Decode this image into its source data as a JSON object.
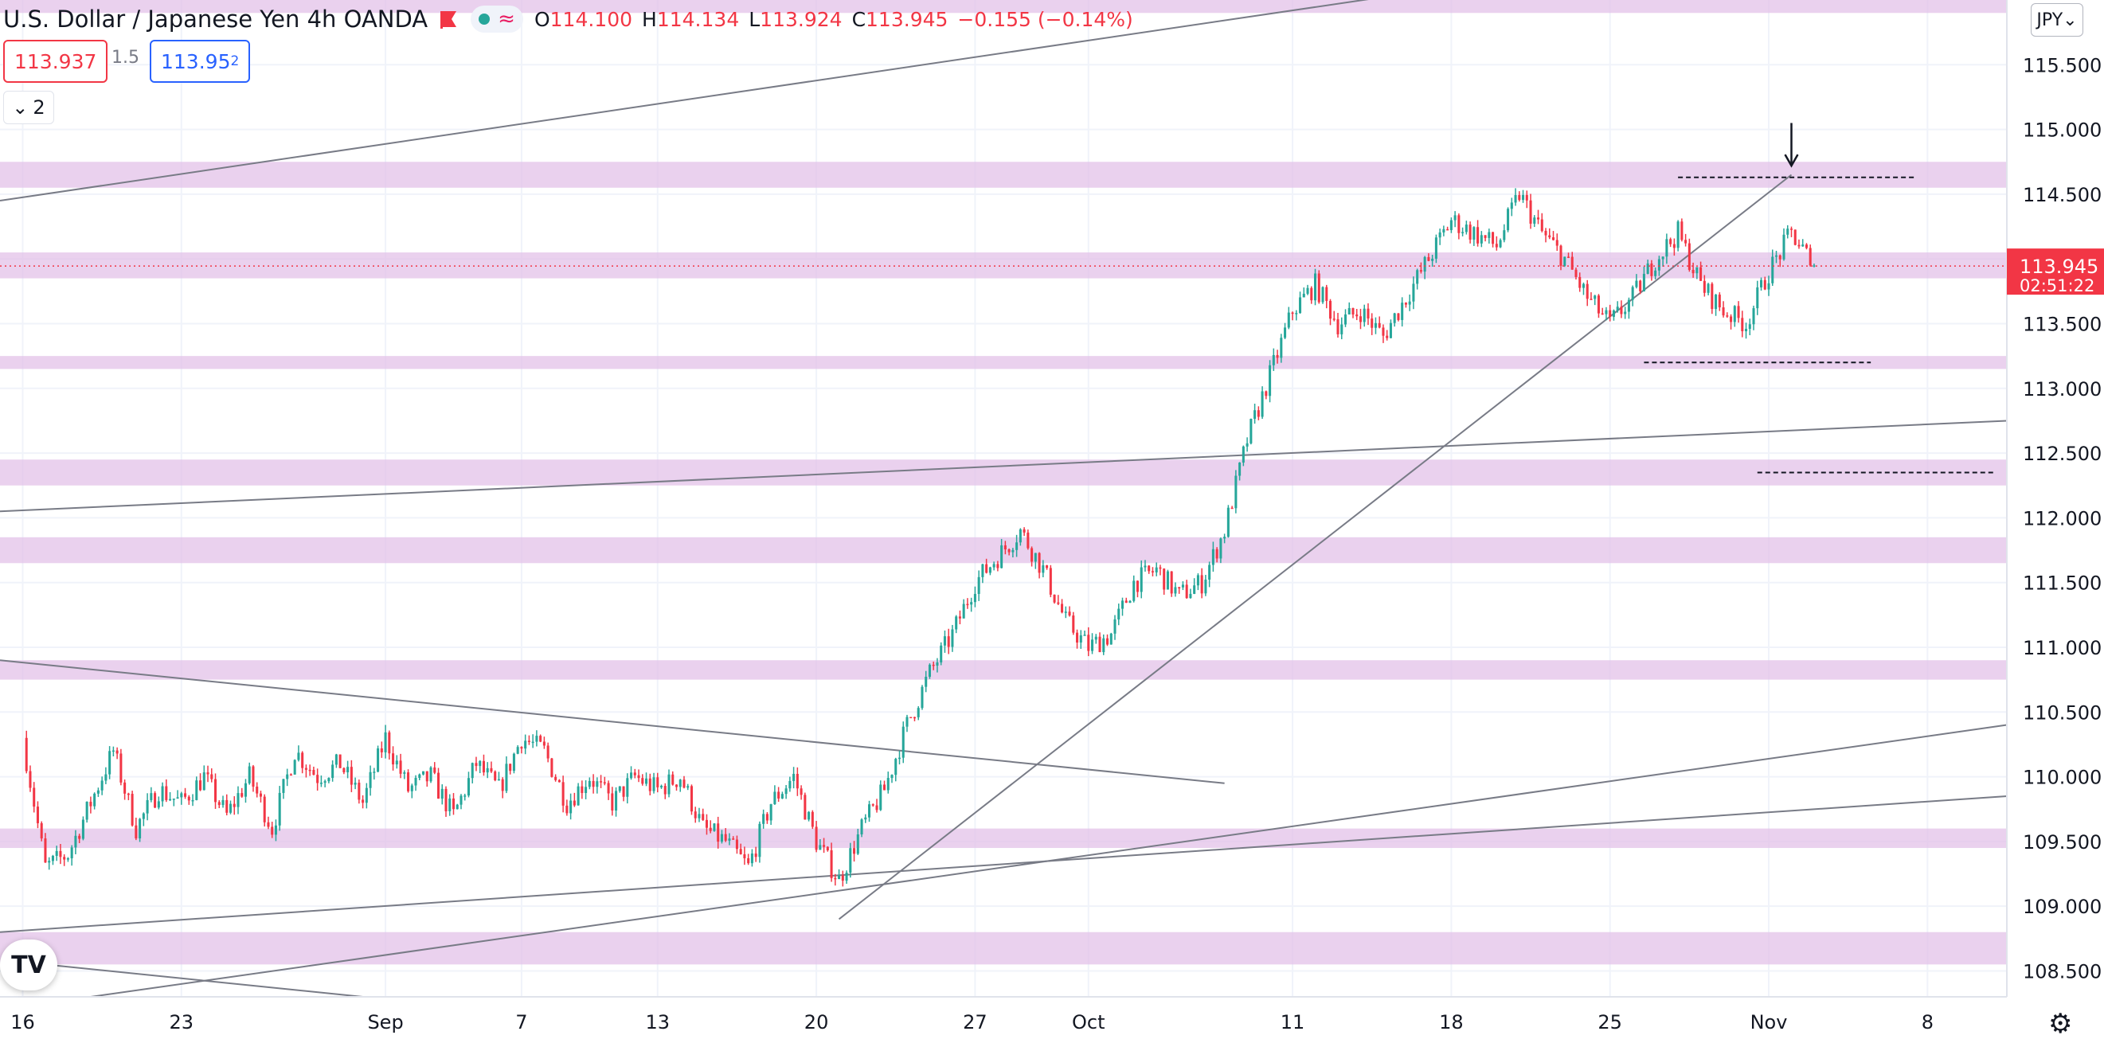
{
  "header": {
    "symbol_title": "U.S. Dollar / Japanese Yen",
    "interval": "4h",
    "broker": "OANDA",
    "approx_icon": "≈",
    "ohlc": {
      "o_label": "O",
      "o": "114.100",
      "h_label": "H",
      "h": "114.134",
      "l_label": "L",
      "l": "113.924",
      "c_label": "C",
      "c": "113.945",
      "change": "−0.155 (−0.14%)"
    }
  },
  "trade": {
    "bid": "113.937",
    "spread": "1.5",
    "ask_main": "113.95",
    "ask_sup": "2"
  },
  "collapse_count": "2",
  "currency": "JPY",
  "logo_text": "TV",
  "icons": {
    "flag": "flag-icon",
    "settings": "gear-icon",
    "chevron": "chevron-down-icon"
  },
  "colors": {
    "up": "#26a69a",
    "down": "#f23645",
    "zone": "#e1bee7",
    "line": "#787b86"
  },
  "chart_data": {
    "type": "candlestick",
    "y_ticks": [
      "108.500",
      "109.000",
      "109.500",
      "110.000",
      "110.500",
      "111.000",
      "111.500",
      "112.000",
      "112.500",
      "113.000",
      "113.500",
      "114.000",
      "114.500",
      "115.000",
      "115.500"
    ],
    "ylim": [
      108.3,
      116.0
    ],
    "x_ticks": [
      "16",
      "23",
      "Sep",
      "7",
      "13",
      "20",
      "27",
      "Oct",
      "11",
      "18",
      "25",
      "Nov",
      "8"
    ],
    "x_tick_days": [
      0,
      7,
      16,
      22,
      28,
      35,
      42,
      47,
      56,
      63,
      70,
      77,
      84
    ],
    "xlim": [
      -1,
      87.5
    ],
    "last_price": "113.945",
    "countdown": "02:51:22",
    "price_path": [
      [
        0,
        110.3
      ],
      [
        1,
        109.3
      ],
      [
        2,
        109.4
      ],
      [
        3,
        109.8
      ],
      [
        4,
        110.2
      ],
      [
        5,
        109.6
      ],
      [
        6,
        109.9
      ],
      [
        7,
        109.8
      ],
      [
        8,
        110.0
      ],
      [
        9,
        109.7
      ],
      [
        10,
        110.0
      ],
      [
        11,
        109.6
      ],
      [
        12,
        110.2
      ],
      [
        13,
        110.0
      ],
      [
        14,
        110.1
      ],
      [
        15,
        109.8
      ],
      [
        16,
        110.3
      ],
      [
        17,
        109.9
      ],
      [
        18,
        110.0
      ],
      [
        19,
        109.7
      ],
      [
        20,
        110.1
      ],
      [
        21,
        109.9
      ],
      [
        22,
        110.3
      ],
      [
        23,
        110.2
      ],
      [
        24,
        109.8
      ],
      [
        25,
        110.0
      ],
      [
        26,
        109.8
      ],
      [
        27,
        110.0
      ],
      [
        28,
        109.9
      ],
      [
        29,
        110.0
      ],
      [
        30,
        109.6
      ],
      [
        31,
        109.5
      ],
      [
        32,
        109.3
      ],
      [
        33,
        109.8
      ],
      [
        34,
        110.0
      ],
      [
        35,
        109.5
      ],
      [
        36,
        109.2
      ],
      [
        37,
        109.6
      ],
      [
        38,
        109.9
      ],
      [
        39,
        110.4
      ],
      [
        40,
        110.8
      ],
      [
        41,
        111.1
      ],
      [
        42,
        111.5
      ],
      [
        43,
        111.7
      ],
      [
        44,
        111.9
      ],
      [
        45,
        111.6
      ],
      [
        46,
        111.2
      ],
      [
        47,
        111.0
      ],
      [
        48,
        111.1
      ],
      [
        49,
        111.5
      ],
      [
        50,
        111.6
      ],
      [
        51,
        111.4
      ],
      [
        52,
        111.5
      ],
      [
        53,
        111.9
      ],
      [
        54,
        112.6
      ],
      [
        55,
        113.1
      ],
      [
        56,
        113.6
      ],
      [
        57,
        113.8
      ],
      [
        58,
        113.5
      ],
      [
        59,
        113.6
      ],
      [
        60,
        113.4
      ],
      [
        61,
        113.7
      ],
      [
        62,
        114.0
      ],
      [
        63,
        114.3
      ],
      [
        64,
        114.2
      ],
      [
        65,
        114.1
      ],
      [
        66,
        114.5
      ],
      [
        67,
        114.2
      ],
      [
        68,
        114.0
      ],
      [
        69,
        113.7
      ],
      [
        70,
        113.5
      ],
      [
        71,
        113.7
      ],
      [
        72,
        114.0
      ],
      [
        73,
        114.2
      ],
      [
        74,
        113.8
      ],
      [
        75,
        113.6
      ],
      [
        76,
        113.5
      ],
      [
        77,
        113.9
      ],
      [
        78,
        114.2
      ],
      [
        79,
        113.95
      ]
    ],
    "zones": [
      [
        115.9,
        116.1
      ],
      [
        114.55,
        114.75
      ],
      [
        113.85,
        114.05
      ],
      [
        113.15,
        113.25
      ],
      [
        112.25,
        112.45
      ],
      [
        111.65,
        111.85
      ],
      [
        110.75,
        110.9
      ],
      [
        109.45,
        109.6
      ],
      [
        108.55,
        108.8
      ]
    ],
    "trend_lines": [
      [
        [
          -1,
          114.45
        ],
        [
          63,
          116.1
        ]
      ],
      [
        [
          -1,
          112.05
        ],
        [
          87.5,
          112.75
        ]
      ],
      [
        [
          -1,
          110.9
        ],
        [
          53,
          109.95
        ]
      ],
      [
        [
          -1,
          108.8
        ],
        [
          87.5,
          109.85
        ]
      ],
      [
        [
          3,
          108.3
        ],
        [
          87.5,
          110.4
        ]
      ],
      [
        [
          36,
          108.9
        ],
        [
          78,
          114.65
        ]
      ],
      [
        [
          1,
          108.55
        ],
        [
          15,
          108.3
        ]
      ]
    ],
    "dashed_lines": [
      [
        [
          73,
          114.63
        ],
        [
          83.5,
          114.63
        ]
      ],
      [
        [
          71.5,
          113.2
        ],
        [
          81.5,
          113.2
        ]
      ],
      [
        [
          76.5,
          112.35
        ],
        [
          87,
          112.35
        ]
      ]
    ],
    "arrow": {
      "day": 78,
      "from": 115.05,
      "to": 114.72
    }
  }
}
